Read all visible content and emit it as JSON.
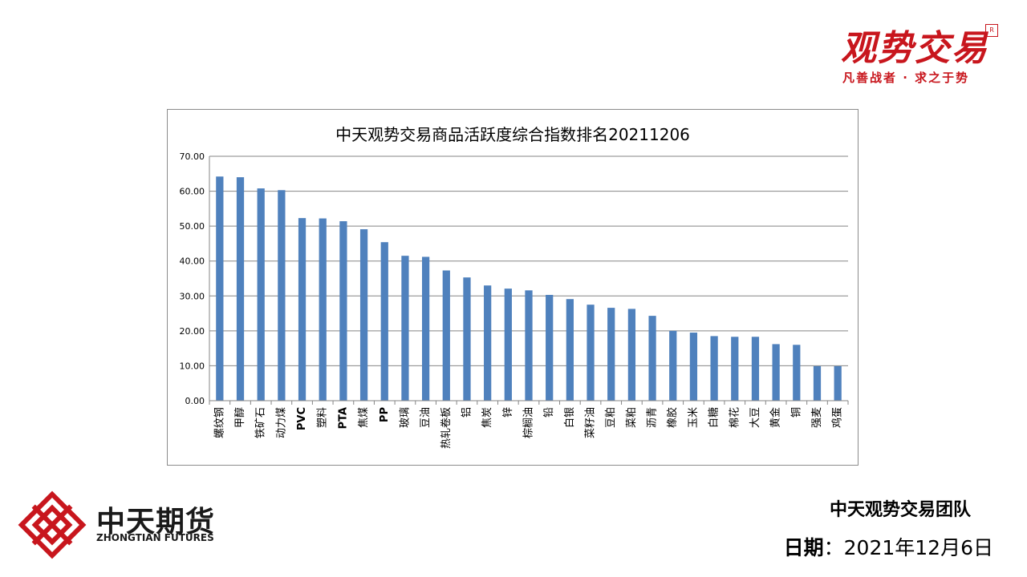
{
  "brand": {
    "logo_text": "观势交易",
    "stamp": "R",
    "slogan": "凡善战者 · 求之于势"
  },
  "company": {
    "name_cn": "中天期货",
    "name_en": "ZHONGTIAN FUTURES",
    "accent_color": "#c8161d"
  },
  "footer": {
    "team": "中天观势交易团队",
    "date_label": "日期",
    "date_sep": "：",
    "date_value": "2021年12月6日"
  },
  "chart_data": {
    "type": "bar",
    "title": "中天观势交易商品活跃度综合指数排名20211206",
    "xlabel": "",
    "ylabel": "",
    "ylim": [
      0,
      70
    ],
    "yticks": [
      "0.00",
      "10.00",
      "20.00",
      "30.00",
      "40.00",
      "50.00",
      "60.00",
      "70.00"
    ],
    "grid": true,
    "legend": "none",
    "bar_color": "#4f81bd",
    "categories": [
      "螺纹钢",
      "甲醇",
      "铁矿石",
      "动力煤",
      "PVC",
      "塑料",
      "PTA",
      "焦煤",
      "PP",
      "玻璃",
      "豆油",
      "热轧卷板",
      "铝",
      "焦炭",
      "锌",
      "棕榈油",
      "铅",
      "白银",
      "菜籽油",
      "豆粕",
      "菜粕",
      "沥青",
      "橡胶",
      "玉米",
      "白糖",
      "棉花",
      "大豆",
      "黄金",
      "铜",
      "强麦",
      "鸡蛋"
    ],
    "values": [
      64.2,
      64.0,
      60.8,
      60.3,
      52.3,
      52.2,
      51.4,
      49.1,
      45.4,
      41.5,
      41.2,
      37.3,
      35.3,
      33.0,
      32.1,
      31.6,
      30.3,
      29.1,
      27.5,
      26.6,
      26.3,
      24.3,
      20.0,
      19.5,
      18.5,
      18.3,
      18.3,
      16.2,
      16.0,
      9.9,
      9.9
    ]
  }
}
